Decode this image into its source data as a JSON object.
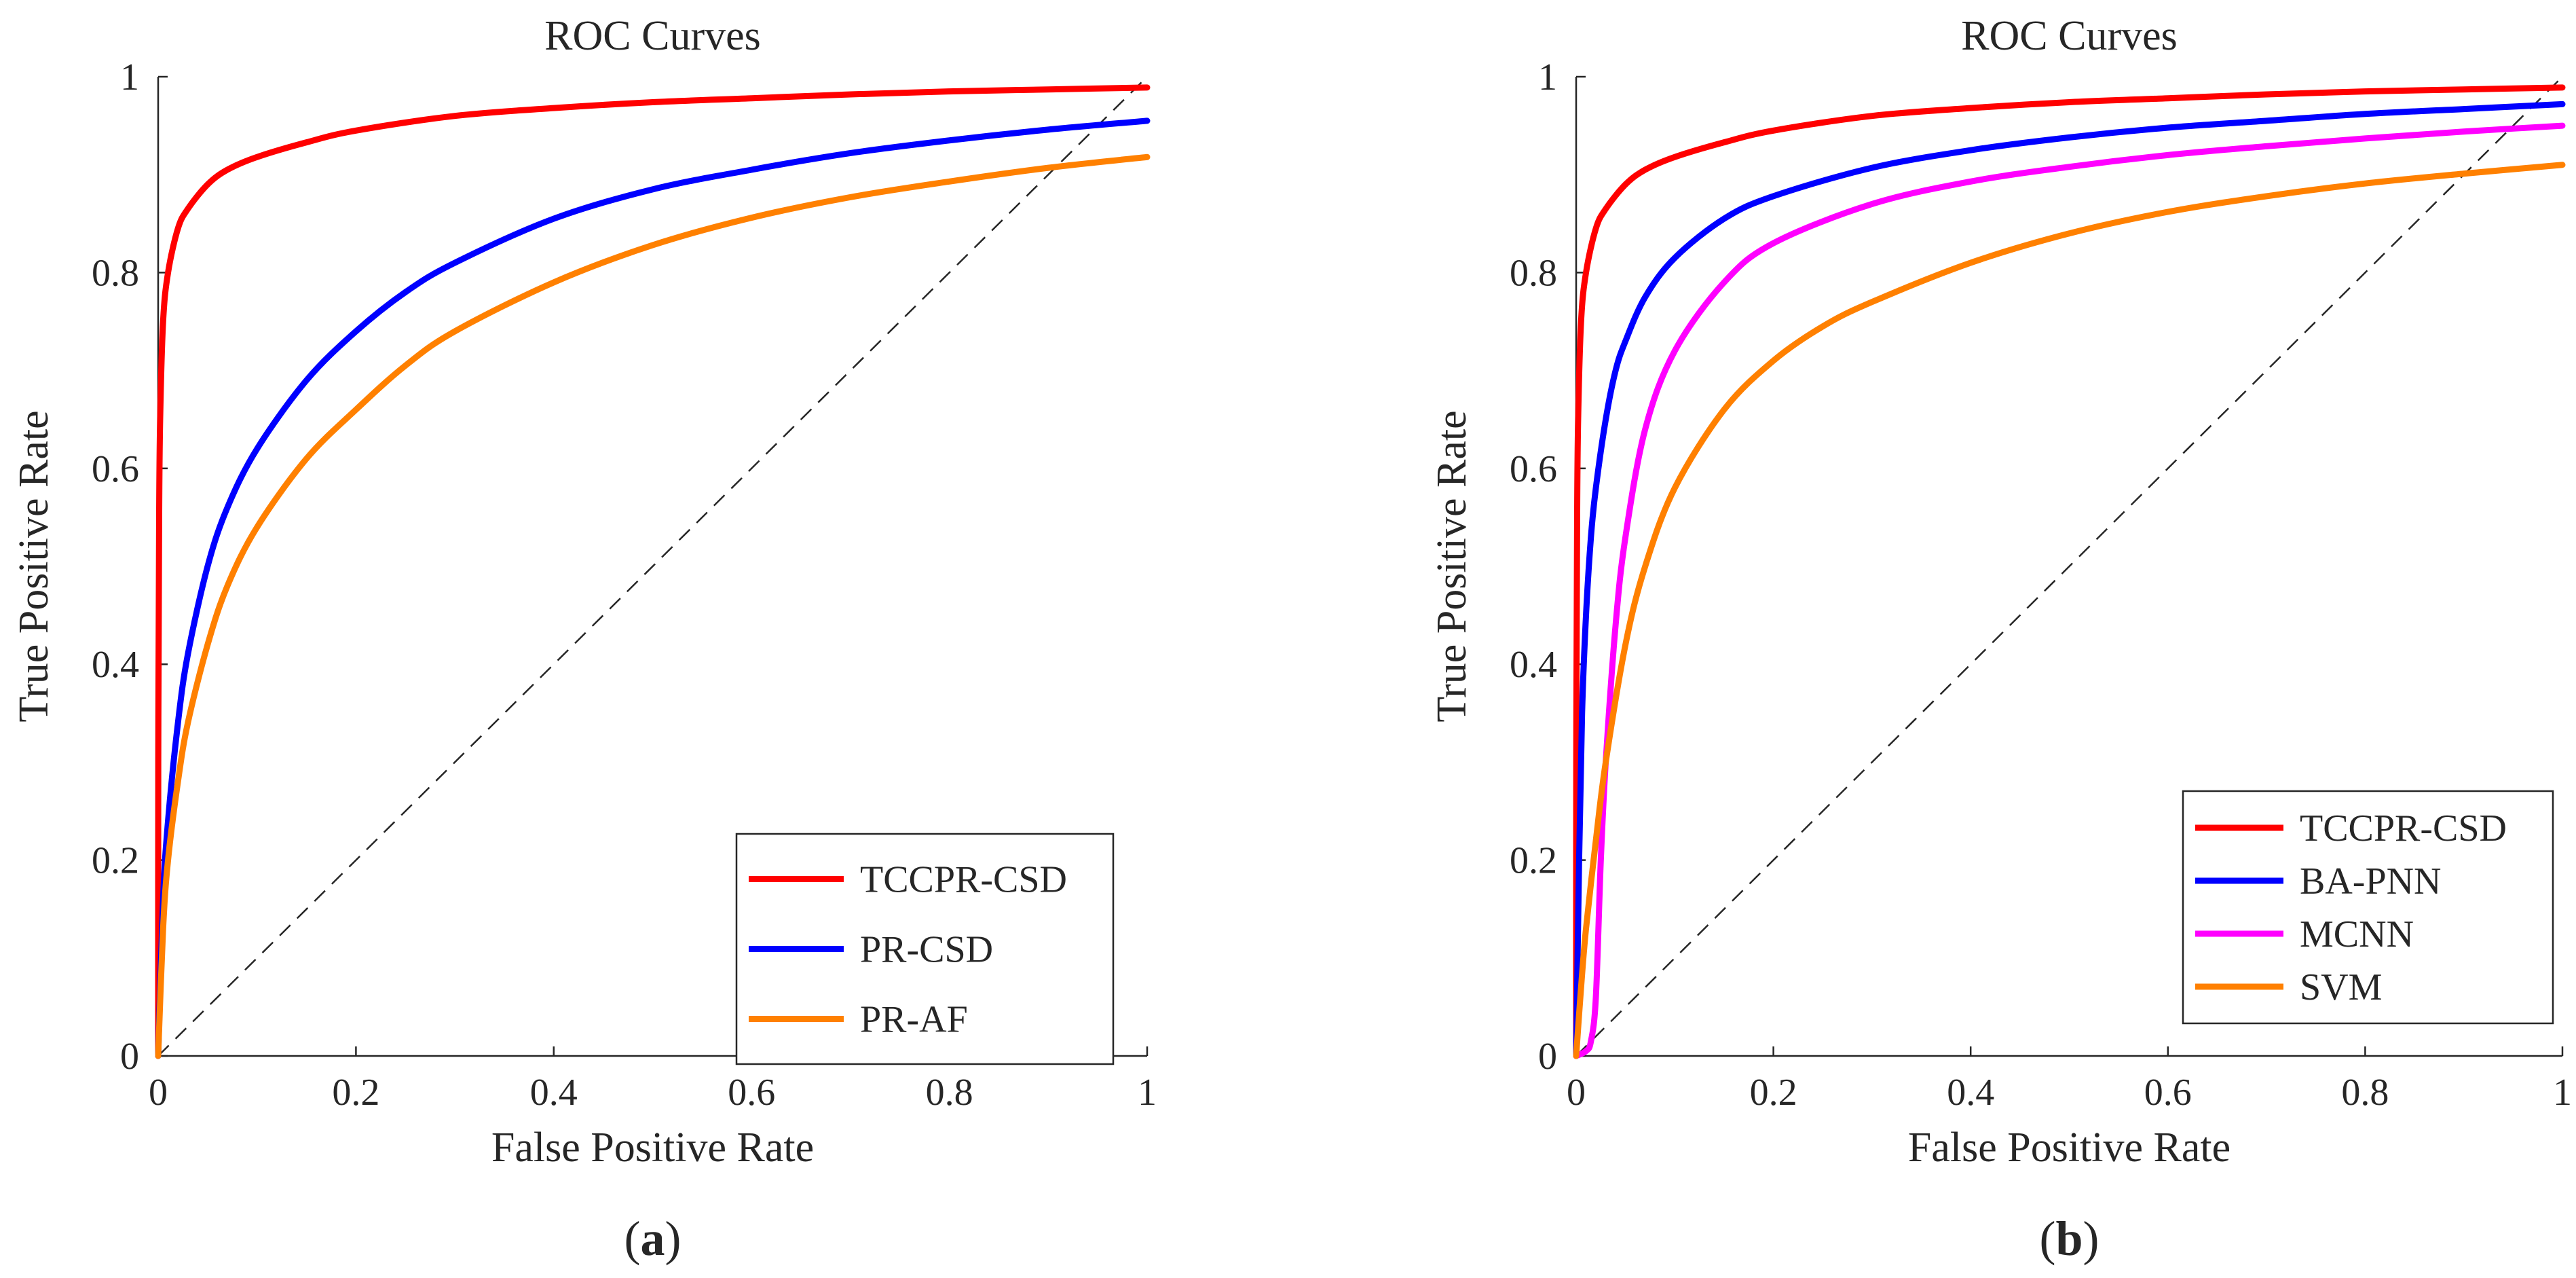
{
  "chart_data": [
    {
      "type": "line",
      "panel_label": "a",
      "title": "ROC Curves",
      "xlabel": "False Positive Rate",
      "ylabel": "True Positive Rate",
      "xlim": [
        0,
        1
      ],
      "ylim": [
        0,
        1
      ],
      "xticks": [
        "0",
        "0.2",
        "0.4",
        "0.6",
        "0.8",
        "1"
      ],
      "yticks": [
        "0",
        "0.2",
        "0.4",
        "0.6",
        "0.8",
        "1"
      ],
      "legend_position": "bottom-right",
      "reference_line": "diagonal dashed",
      "series": [
        {
          "name": "TCCPR-CSD",
          "color": "#ff0000",
          "x": [
            0,
            0.0001,
            0.001,
            0.002,
            0.005,
            0.01,
            0.02,
            0.03,
            0.05,
            0.07,
            0.1,
            0.15,
            0.2,
            0.3,
            0.4,
            0.5,
            0.6,
            0.7,
            0.8,
            0.9,
            1.0
          ],
          "y": [
            0,
            0.3,
            0.55,
            0.65,
            0.75,
            0.8,
            0.845,
            0.865,
            0.89,
            0.905,
            0.918,
            0.933,
            0.945,
            0.96,
            0.968,
            0.974,
            0.978,
            0.982,
            0.985,
            0.987,
            0.989
          ]
        },
        {
          "name": "PR-CSD",
          "color": "#0000ff",
          "x": [
            0,
            0.005,
            0.01,
            0.02,
            0.03,
            0.05,
            0.07,
            0.1,
            0.15,
            0.2,
            0.25,
            0.3,
            0.4,
            0.5,
            0.6,
            0.7,
            0.8,
            0.9,
            1.0
          ],
          "y": [
            0,
            0.16,
            0.24,
            0.34,
            0.41,
            0.5,
            0.56,
            0.62,
            0.69,
            0.74,
            0.78,
            0.81,
            0.855,
            0.885,
            0.905,
            0.922,
            0.935,
            0.946,
            0.955
          ]
        },
        {
          "name": "PR-AF",
          "color": "#ff8000",
          "x": [
            0,
            0.005,
            0.01,
            0.02,
            0.03,
            0.05,
            0.07,
            0.1,
            0.15,
            0.2,
            0.25,
            0.3,
            0.4,
            0.5,
            0.6,
            0.7,
            0.8,
            0.9,
            1.0
          ],
          "y": [
            0,
            0.13,
            0.2,
            0.28,
            0.34,
            0.42,
            0.48,
            0.54,
            0.61,
            0.66,
            0.705,
            0.74,
            0.79,
            0.828,
            0.856,
            0.877,
            0.893,
            0.907,
            0.918
          ]
        }
      ]
    },
    {
      "type": "line",
      "panel_label": "b",
      "title": "ROC Curves",
      "xlabel": "False Positive Rate",
      "ylabel": "True Positive Rate",
      "xlim": [
        0,
        1
      ],
      "ylim": [
        0,
        1
      ],
      "xticks": [
        "0",
        "0.2",
        "0.4",
        "0.6",
        "0.8",
        "1"
      ],
      "yticks": [
        "0",
        "0.2",
        "0.4",
        "0.6",
        "0.8",
        "1"
      ],
      "legend_position": "bottom-right",
      "reference_line": "diagonal dashed",
      "series": [
        {
          "name": "TCCPR-CSD",
          "color": "#ff0000",
          "x": [
            0,
            0.0001,
            0.001,
            0.002,
            0.005,
            0.01,
            0.02,
            0.03,
            0.05,
            0.07,
            0.1,
            0.15,
            0.2,
            0.3,
            0.4,
            0.5,
            0.6,
            0.7,
            0.8,
            0.9,
            1.0
          ],
          "y": [
            0,
            0.3,
            0.55,
            0.65,
            0.75,
            0.8,
            0.845,
            0.865,
            0.89,
            0.905,
            0.918,
            0.933,
            0.945,
            0.96,
            0.968,
            0.974,
            0.978,
            0.982,
            0.985,
            0.987,
            0.989
          ]
        },
        {
          "name": "BA-PNN",
          "color": "#0000ff",
          "x": [
            0,
            0.003,
            0.006,
            0.01,
            0.015,
            0.02,
            0.03,
            0.04,
            0.05,
            0.07,
            0.1,
            0.15,
            0.2,
            0.3,
            0.4,
            0.5,
            0.6,
            0.7,
            0.8,
            0.9,
            1.0
          ],
          "y": [
            0,
            0.2,
            0.35,
            0.45,
            0.53,
            0.58,
            0.65,
            0.7,
            0.73,
            0.775,
            0.815,
            0.855,
            0.878,
            0.907,
            0.925,
            0.938,
            0.948,
            0.955,
            0.962,
            0.967,
            0.972
          ]
        },
        {
          "name": "MCNN",
          "color": "#ff00ff",
          "x": [
            0,
            0.01,
            0.015,
            0.02,
            0.025,
            0.03,
            0.04,
            0.05,
            0.07,
            0.1,
            0.15,
            0.2,
            0.3,
            0.4,
            0.5,
            0.6,
            0.7,
            0.8,
            0.9,
            1.0
          ],
          "y": [
            0,
            0.005,
            0.015,
            0.06,
            0.2,
            0.3,
            0.44,
            0.53,
            0.64,
            0.72,
            0.79,
            0.83,
            0.87,
            0.893,
            0.908,
            0.92,
            0.929,
            0.937,
            0.944,
            0.95
          ]
        },
        {
          "name": "SVM",
          "color": "#ff8000",
          "x": [
            0,
            0.005,
            0.01,
            0.02,
            0.03,
            0.05,
            0.07,
            0.1,
            0.15,
            0.2,
            0.25,
            0.3,
            0.4,
            0.5,
            0.6,
            0.7,
            0.8,
            0.9,
            1.0
          ],
          "y": [
            0,
            0.07,
            0.13,
            0.22,
            0.3,
            0.42,
            0.5,
            0.58,
            0.66,
            0.71,
            0.745,
            0.77,
            0.81,
            0.84,
            0.862,
            0.878,
            0.891,
            0.901,
            0.91
          ]
        }
      ]
    }
  ]
}
